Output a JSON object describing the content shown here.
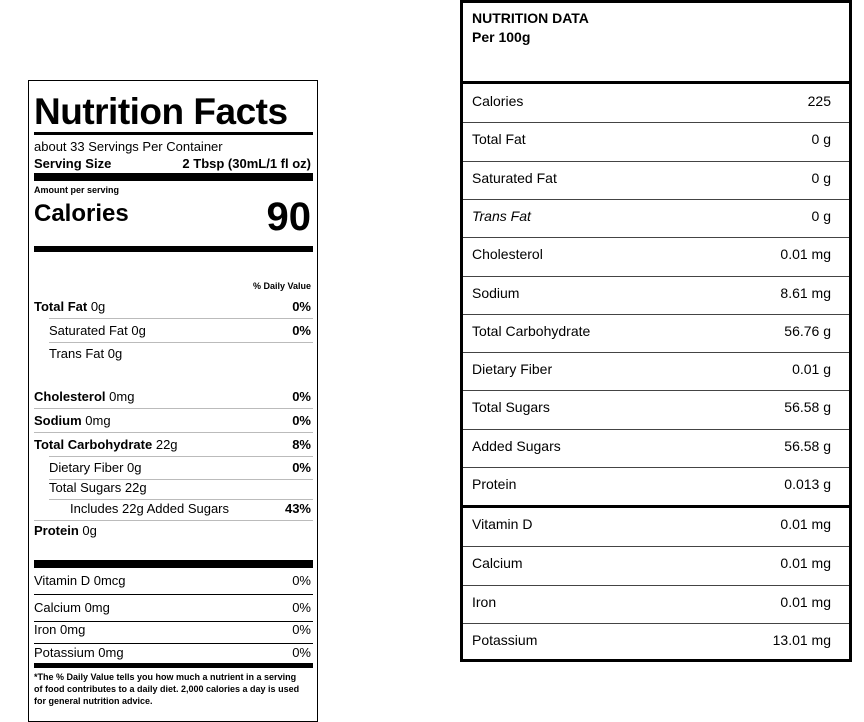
{
  "label": {
    "title": "Nutrition Facts",
    "servings": "about 33 Servings Per Container",
    "serving_size_label": "Serving Size",
    "serving_size": "2 Tbsp (30mL/1 fl oz)",
    "amount_per_serving": "Amount per serving",
    "calories_label": "Calories",
    "calories": "90",
    "daily_value_header": "% Daily Value",
    "nutrients": [
      {
        "name": "Total Fat",
        "amount": "0g",
        "dv": "0%"
      },
      {
        "name": "Saturated Fat",
        "amount": "0g",
        "dv": "0%"
      },
      {
        "name": "Trans Fat",
        "amount": "0g"
      },
      {
        "name": "Cholesterol",
        "amount": "0mg",
        "dv": "0%"
      },
      {
        "name": "Sodium",
        "amount": "0mg",
        "dv": "0%"
      },
      {
        "name": "Total Carbohydrate",
        "amount": "22g",
        "dv": "8%"
      },
      {
        "name": "Dietary Fiber",
        "amount": "0g",
        "dv": "0%"
      },
      {
        "name": "Total Sugars",
        "amount": "22g"
      },
      {
        "name": "Includes 22g Added Sugars",
        "dv": "43%"
      },
      {
        "name": "Protein",
        "amount": "0g"
      }
    ],
    "vitamins": [
      {
        "name": "Vitamin D 0mcg",
        "dv": "0%"
      },
      {
        "name": "Calcium 0mg",
        "dv": "0%"
      },
      {
        "name": "Iron 0mg",
        "dv": "0%"
      },
      {
        "name": "Potassium 0mg",
        "dv": "0%"
      }
    ],
    "footnote": "*The % Daily Value tells you how much a nutrient in a serving of food contributes to a daily diet.  2,000 calories a day is used for general nutrition advice."
  },
  "data_table": {
    "title": "NUTRITION DATA",
    "subtitle": "Per 100g",
    "rows": [
      [
        "Calories",
        "225"
      ],
      [
        "Total Fat",
        "0 g"
      ],
      [
        "Saturated Fat",
        "0 g"
      ],
      [
        "Trans Fat",
        "0 g"
      ],
      [
        "Cholesterol",
        "0.01 mg"
      ],
      [
        "Sodium",
        "8.61 mg"
      ],
      [
        "Total Carbohydrate",
        "56.76 g"
      ],
      [
        "Dietary Fiber",
        "0.01 g"
      ],
      [
        "Total Sugars",
        "56.58 g"
      ],
      [
        "Added Sugars",
        "56.58 g"
      ],
      [
        "Protein",
        "0.013 g"
      ],
      [
        "Vitamin D",
        "0.01 mg"
      ],
      [
        "Calcium",
        "0.01 mg"
      ],
      [
        "Iron",
        "0.01 mg"
      ],
      [
        "Potassium",
        "13.01 mg"
      ]
    ]
  }
}
